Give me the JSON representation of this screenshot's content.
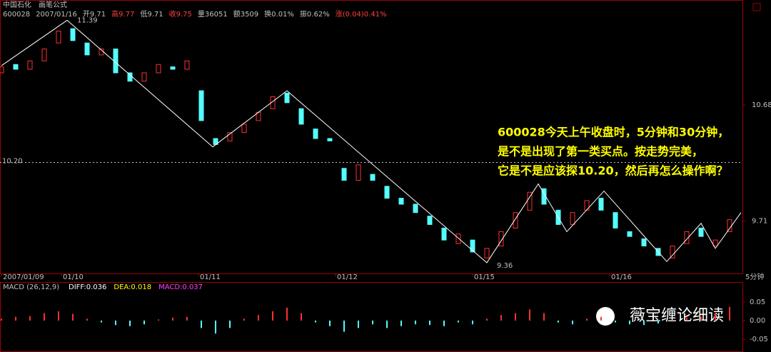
{
  "chart_data": [
    {
      "type": "candlestick",
      "title": "中国石化",
      "subtitle": "画笔公式",
      "header": [
        "600028",
        "2007/01/16",
        "开9.71",
        "高9.77",
        "低9.71",
        "收9.75",
        "量36051",
        "额3509",
        "换0.01%",
        "振0.62%",
        "涨(0.04)0.41%"
      ],
      "header_colors": [
        "#c0c0c0",
        "#c0c0c0",
        "#c0c0c0",
        "#ff4040",
        "#c0c0c0",
        "#ff4040",
        "#c0c0c0",
        "#c0c0c0",
        "#c0c0c0",
        "#c0c0c0",
        "#ff4040"
      ],
      "period": "5分钟",
      "x": [
        0,
        5,
        10,
        15,
        20,
        25,
        30,
        35,
        40,
        45,
        50,
        55,
        60,
        65,
        70,
        75,
        80,
        85,
        90,
        95,
        100,
        105,
        110,
        115,
        120,
        125,
        130,
        135,
        140,
        145,
        150,
        155,
        160,
        165,
        170,
        175,
        180,
        185,
        190,
        195,
        200,
        205,
        210,
        215,
        220,
        225,
        230,
        235,
        240,
        245,
        250,
        255
      ],
      "open": [
        10.95,
        11.02,
        10.98,
        11.05,
        11.2,
        11.32,
        11.2,
        11.1,
        11.15,
        10.95,
        10.88,
        10.95,
        11.0,
        10.98,
        10.8,
        10.4,
        10.38,
        10.45,
        10.55,
        10.65,
        10.78,
        10.65,
        10.48,
        10.4,
        10.15,
        10.05,
        10.1,
        10.0,
        9.9,
        9.85,
        9.75,
        9.65,
        9.52,
        9.55,
        9.4,
        9.5,
        9.65,
        9.8,
        9.98,
        9.8,
        9.68,
        9.8,
        9.9,
        9.78,
        9.62,
        9.56,
        9.48,
        9.4,
        9.52,
        9.65,
        9.5,
        9.62
      ],
      "close": [
        11.0,
        10.98,
        11.05,
        11.15,
        11.3,
        11.22,
        11.1,
        11.15,
        10.95,
        10.88,
        10.95,
        11.02,
        10.98,
        11.05,
        10.55,
        10.35,
        10.45,
        10.52,
        10.62,
        10.75,
        10.7,
        10.52,
        10.4,
        10.38,
        10.05,
        10.18,
        10.05,
        9.9,
        9.85,
        9.78,
        9.68,
        9.55,
        9.6,
        9.45,
        9.48,
        9.62,
        9.78,
        9.95,
        9.85,
        9.68,
        9.78,
        9.88,
        9.8,
        9.65,
        9.58,
        9.5,
        9.42,
        9.5,
        9.62,
        9.58,
        9.55,
        9.72
      ],
      "up_color": "#ff3030",
      "down_color": "#54ffff",
      "zigzag": {
        "x": [
          0,
          23,
          74,
          100,
          170,
          188,
          198,
          211,
          233,
          245,
          250,
          259
        ],
        "values": [
          11.01,
          11.39,
          10.33,
          10.8,
          9.36,
          10.02,
          9.62,
          9.96,
          9.37,
          9.69,
          9.48,
          9.78
        ],
        "color": "#ffffff"
      },
      "ref_line": {
        "value": 10.2,
        "label": "10.20"
      },
      "xlim": [
        0,
        260
      ],
      "xticks": [
        {
          "value": 0,
          "label": "2007/01/09"
        },
        {
          "value": 21,
          "label": "01/10"
        },
        {
          "value": 69,
          "label": "01/11"
        },
        {
          "value": 117,
          "label": "01/12"
        },
        {
          "value": 165,
          "label": "01/15"
        },
        {
          "value": 213,
          "label": "01/16"
        }
      ],
      "ylim": [
        9.27,
        11.53
      ],
      "yticks": [
        10.68,
        9.71
      ],
      "annotation": [
        "600028今天上午收盘时，5分钟和30分钟，",
        "是不是出现了第一类买点。按走势完美，",
        "它是不是应该探10.20，然后再怎么操作啊？"
      ]
    },
    {
      "type": "bar",
      "title": "MACD (26,12,9)",
      "labels": [
        "DIFF:0.036",
        "DEA:0.018",
        "MACD:0.037"
      ],
      "label_colors": [
        "#ffffff",
        "#ffff00",
        "#ff40ff"
      ],
      "x": [
        0,
        5,
        10,
        15,
        20,
        25,
        30,
        35,
        40,
        45,
        50,
        55,
        60,
        65,
        70,
        75,
        80,
        85,
        90,
        95,
        100,
        105,
        110,
        115,
        120,
        125,
        130,
        135,
        140,
        145,
        150,
        155,
        160,
        165,
        170,
        175,
        180,
        185,
        190,
        195,
        200,
        205,
        210,
        215,
        220,
        225,
        230,
        235,
        240,
        245,
        250,
        255
      ],
      "values": [
        0.005,
        0.01,
        0.012,
        0.02,
        0.025,
        0.018,
        0.005,
        -0.005,
        -0.012,
        -0.015,
        -0.01,
        0.003,
        0.008,
        0.01,
        -0.02,
        -0.035,
        -0.02,
        0.005,
        0.015,
        0.025,
        0.035,
        0.02,
        -0.005,
        -0.015,
        -0.03,
        -0.02,
        -0.01,
        -0.02,
        -0.015,
        -0.01,
        -0.012,
        -0.015,
        -0.005,
        -0.01,
        0.005,
        0.015,
        0.02,
        0.03,
        0.02,
        -0.005,
        -0.01,
        0.005,
        0.01,
        -0.005,
        -0.01,
        -0.012,
        -0.008,
        0.002,
        0.008,
        0.01,
        0.02,
        0.037
      ],
      "xlim": [
        0,
        260
      ],
      "ylim": [
        -0.075,
        0.098
      ],
      "yticks": [
        0.05,
        {
          "value": 0,
          "label": "0.00"
        },
        -0.05
      ]
    }
  ],
  "watermark": "薇宝缠论细读"
}
